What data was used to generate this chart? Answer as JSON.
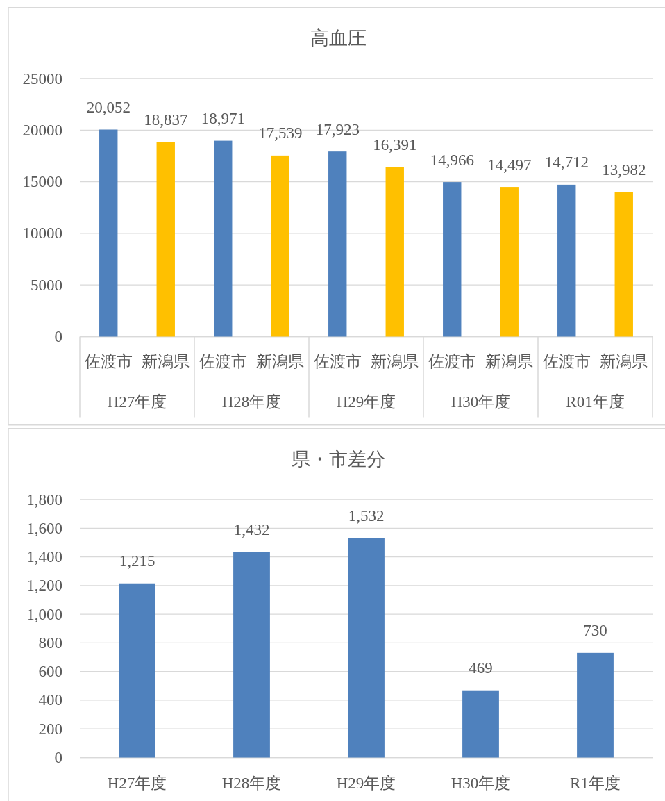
{
  "chart_data": [
    {
      "type": "bar",
      "title": "高血圧",
      "categories": [
        "H27年度",
        "H28年度",
        "H29年度",
        "H30年度",
        "R01年度"
      ],
      "series": [
        {
          "name": "佐渡市",
          "color": "#4f81bd",
          "values": [
            20052,
            18971,
            17923,
            14966,
            14712
          ],
          "value_labels": [
            "20,052",
            "18,971",
            "17,923",
            "14,966",
            "14,712"
          ]
        },
        {
          "name": "新潟県",
          "color": "#ffc000",
          "values": [
            18837,
            17539,
            16391,
            14497,
            13982
          ],
          "value_labels": [
            "18,837",
            "17,539",
            "16,391",
            "14,497",
            "13,982"
          ]
        }
      ],
      "ylim": [
        0,
        25000
      ],
      "yticks": [
        0,
        5000,
        10000,
        15000,
        20000,
        25000
      ],
      "grid": "y"
    },
    {
      "type": "bar",
      "title": "県・市差分",
      "categories": [
        "H27年度",
        "H28年度",
        "H29年度",
        "H30年度",
        "R1年度"
      ],
      "values": [
        1215,
        1432,
        1532,
        469,
        730
      ],
      "value_labels": [
        "1,215",
        "1,432",
        "1,532",
        "469",
        "730"
      ],
      "color": "#4f81bd",
      "ylim": [
        0,
        1800
      ],
      "yticks": [
        0,
        200,
        400,
        600,
        800,
        {
          "value": 1000,
          "label": "1,000"
        },
        {
          "value": 1200,
          "label": "1,200"
        },
        {
          "value": 1400,
          "label": "1,400"
        },
        {
          "value": 1600,
          "label": "1,600"
        },
        {
          "value": 1800,
          "label": "1,800"
        }
      ],
      "grid": "y"
    }
  ]
}
